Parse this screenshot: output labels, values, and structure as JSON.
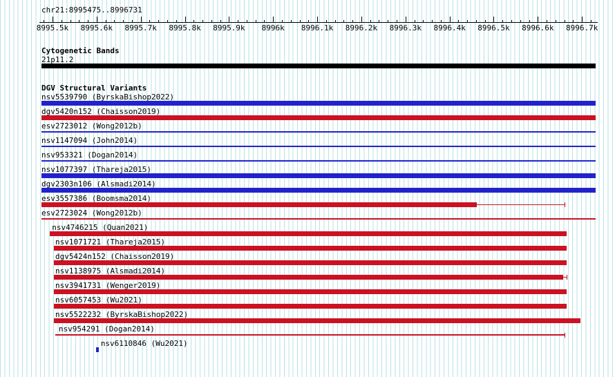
{
  "header": {
    "region": "chr21:8995475..8996731"
  },
  "chart_data": {
    "type": "genome-browser-tracks",
    "title": "DGV Structural Variants browser view",
    "chrom": "chr21",
    "view_start": 8995475,
    "view_end": 8996731,
    "axis": {
      "major_step_bp": 100,
      "minor_step_bp": 20,
      "tick_labels": [
        "8995.5k",
        "8995.6k",
        "8995.7k",
        "8995.8k",
        "8995.9k",
        "8996k",
        "8996.1k",
        "8996.2k",
        "8996.3k",
        "8996.4k",
        "8996.5k",
        "8996.6k",
        "8996.7k"
      ]
    },
    "colors": {
      "blue": "#2222cc",
      "red": "#cc1122",
      "band": "#000000"
    },
    "tracks": [
      {
        "title": "Cytogenetic Bands",
        "features": [
          {
            "label": "21p11.2",
            "x1": 0,
            "x2": 1,
            "color": "band",
            "shape": "box"
          }
        ]
      },
      {
        "title": "DGV Structural Variants",
        "features": [
          {
            "label": "nsv5539790 (ByrskaBishop2022)",
            "color": "blue",
            "shape": "box",
            "x1": 0,
            "x2": 1,
            "label_x": 0
          },
          {
            "label": "dgv5420n152 (Chaisson2019)",
            "color": "red",
            "shape": "box",
            "x1": 0,
            "x2": 1,
            "label_x": 0
          },
          {
            "label": "esv2723012 (Wong2012b)",
            "color": "blue",
            "shape": "line",
            "x1": 0,
            "x2": 1,
            "label_x": 0
          },
          {
            "label": "nsv1147094 (John2014)",
            "color": "blue",
            "shape": "line",
            "x1": 0,
            "x2": 1,
            "label_x": 0
          },
          {
            "label": "nsv953321 (Dogan2014)",
            "color": "blue",
            "shape": "line",
            "x1": 0,
            "x2": 1,
            "label_x": 0
          },
          {
            "label": "nsv1077397 (Thareja2015)",
            "color": "blue",
            "shape": "box",
            "x1": 0,
            "x2": 1,
            "label_x": 0
          },
          {
            "label": "dgv2303n106 (Alsmadi2014)",
            "color": "blue",
            "shape": "box",
            "x1": 0,
            "x2": 1,
            "label_x": 0
          },
          {
            "label": "esv3557386 (Boomsma2014)",
            "color": "red",
            "shape": "box",
            "x1": 0,
            "x2": 0.785,
            "ext_x2": 0.944,
            "end_tick": true,
            "label_x": 0
          },
          {
            "label": "esv2723024 (Wong2012b)",
            "color": "red",
            "shape": "line",
            "x1": 0,
            "x2": 1,
            "label_x": 0
          },
          {
            "label": "nsv4746215 (Quan2021)",
            "color": "red",
            "shape": "box",
            "x1": 0.015,
            "x2": 0.948,
            "label_x": 0.019
          },
          {
            "label": "nsv1071721 (Thareja2015)",
            "color": "red",
            "shape": "box",
            "x1": 0.022,
            "x2": 0.948,
            "label_x": 0.025
          },
          {
            "label": "dgv5424n152 (Chaisson2019)",
            "color": "red",
            "shape": "box",
            "x1": 0.022,
            "x2": 0.948,
            "label_x": 0.025
          },
          {
            "label": "nsv1138975 (Alsmadi2014)",
            "color": "red",
            "shape": "box",
            "x1": 0.022,
            "x2": 0.941,
            "ext_x2": 0.948,
            "end_tick": true,
            "label_x": 0.025
          },
          {
            "label": "nsv3941731 (Wenger2019)",
            "color": "red",
            "shape": "box",
            "x1": 0.022,
            "x2": 0.948,
            "label_x": 0.025
          },
          {
            "label": "nsv6057453 (Wu2021)",
            "color": "red",
            "shape": "box",
            "x1": 0.022,
            "x2": 0.948,
            "label_x": 0.025
          },
          {
            "label": "nsv5522232 (ByrskaBishop2022)",
            "color": "red",
            "shape": "box",
            "x1": 0.022,
            "x2": 0.973,
            "label_x": 0.025
          },
          {
            "label": "nsv954291 (Dogan2014)",
            "color": "red",
            "shape": "line",
            "x1": 0.025,
            "x2": 0.944,
            "end_tick": true,
            "label_x": 0.031
          },
          {
            "label": "nsv6110846 (Wu2021)",
            "color": "blue",
            "shape": "box",
            "x1": 0.098,
            "x2": 0.103,
            "label_x": 0.107
          }
        ]
      }
    ]
  }
}
